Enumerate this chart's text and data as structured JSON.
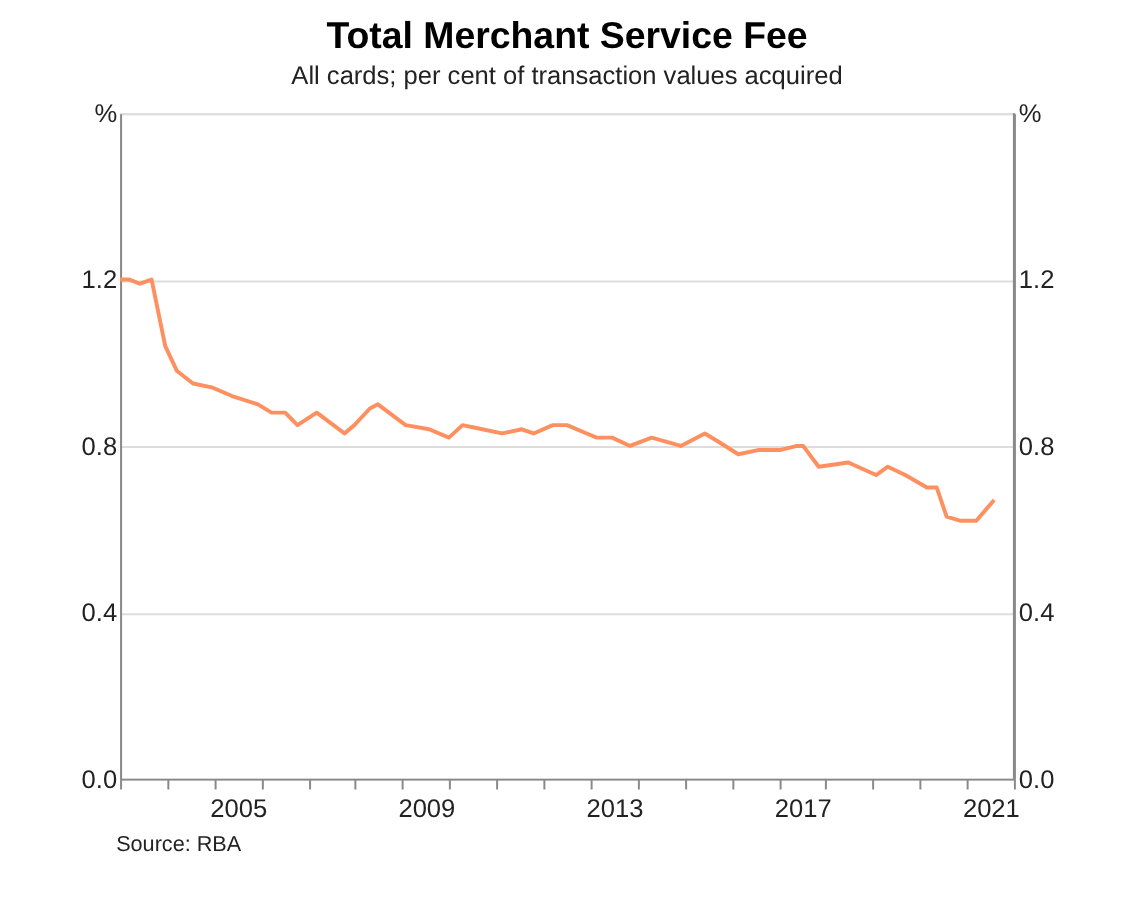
{
  "chart_data": {
    "type": "line",
    "title": "Total Merchant Service Fee",
    "subtitle": "All cards; per cent of transaction values acquired",
    "annotations": [
      "Source:   RBA"
    ],
    "x": [
      2003.0,
      2003.2,
      2003.42,
      2003.67,
      2003.96,
      2004.21,
      2004.55,
      2004.97,
      2005.38,
      2005.93,
      2006.22,
      2006.51,
      2006.77,
      2007.18,
      2007.77,
      2007.98,
      2008.31,
      2008.48,
      2009.07,
      2009.57,
      2009.99,
      2010.28,
      2010.7,
      2011.12,
      2011.54,
      2011.79,
      2012.2,
      2012.5,
      2012.92,
      2013.13,
      2013.46,
      2013.84,
      2014.3,
      2014.92,
      2015.43,
      2015.72,
      2016.14,
      2016.56,
      2017.02,
      2017.39,
      2017.52,
      2017.85,
      2018.48,
      2019.07,
      2019.32,
      2019.69,
      2020.15,
      2020.36,
      2020.57,
      2020.87,
      2021.2,
      2021.58
    ],
    "series": [
      {
        "color": "#fe9060",
        "values": [
          1.2,
          1.2,
          1.19,
          1.2,
          1.04,
          0.98,
          0.95,
          0.94,
          0.92,
          0.9,
          0.88,
          0.88,
          0.85,
          0.88,
          0.83,
          0.85,
          0.89,
          0.9,
          0.85,
          0.84,
          0.82,
          0.85,
          0.84,
          0.83,
          0.84,
          0.83,
          0.85,
          0.85,
          0.83,
          0.82,
          0.82,
          0.8,
          0.82,
          0.8,
          0.83,
          0.81,
          0.78,
          0.79,
          0.79,
          0.8,
          0.8,
          0.75,
          0.76,
          0.73,
          0.75,
          0.73,
          0.7,
          0.7,
          0.63,
          0.62,
          0.62,
          0.67
        ]
      }
    ],
    "xlim": [
      2003,
      2022
    ],
    "xticks": [
      {
        "value": 2003,
        "label": null
      },
      {
        "value": 2004,
        "label": null
      },
      {
        "value": 2005,
        "label": null
      },
      {
        "value": 2006,
        "label": null
      },
      {
        "value": 2007,
        "label": null
      },
      {
        "value": 2008,
        "label": null
      },
      {
        "value": 2009,
        "label": null
      },
      {
        "value": 2010,
        "label": null
      },
      {
        "value": 2011,
        "label": null
      },
      {
        "value": 2012,
        "label": null
      },
      {
        "value": 2013,
        "label": null
      },
      {
        "value": 2014,
        "label": null
      },
      {
        "value": 2015,
        "label": null
      },
      {
        "value": 2016,
        "label": null
      },
      {
        "value": 2017,
        "label": null
      },
      {
        "value": 2018,
        "label": null
      },
      {
        "value": 2019,
        "label": null
      },
      {
        "value": 2020,
        "label": null
      },
      {
        "value": 2021,
        "label": null
      },
      {
        "value": 2022,
        "label": null
      },
      {
        "value": 2005.5,
        "label": "2005"
      },
      {
        "value": 2009.5,
        "label": "2009"
      },
      {
        "value": 2013.5,
        "label": "2013"
      },
      {
        "value": 2017.5,
        "label": "2017"
      },
      {
        "value": 2021.5,
        "label": "2021"
      }
    ],
    "ylim": [
      0,
      1.6
    ],
    "yticks": [
      {
        "value": 0,
        "label": "0.0"
      },
      {
        "value": 0.4,
        "label": "0.4"
      },
      {
        "value": 0.8,
        "label": "0.8"
      },
      {
        "value": 1.2,
        "label": "1.2"
      },
      {
        "value": 1.6,
        "label": "%"
      }
    ],
    "y2lim": [
      0,
      1.6
    ],
    "y2ticks": [
      {
        "value": 0,
        "label": "0.0"
      },
      {
        "value": 0.4,
        "label": "0.4"
      },
      {
        "value": 0.8,
        "label": "0.8"
      },
      {
        "value": 1.2,
        "label": "1.2"
      },
      {
        "value": 1.6,
        "label": "%"
      }
    ],
    "grid": "y",
    "legend": false,
    "marker": "none",
    "line_style": "solid"
  }
}
